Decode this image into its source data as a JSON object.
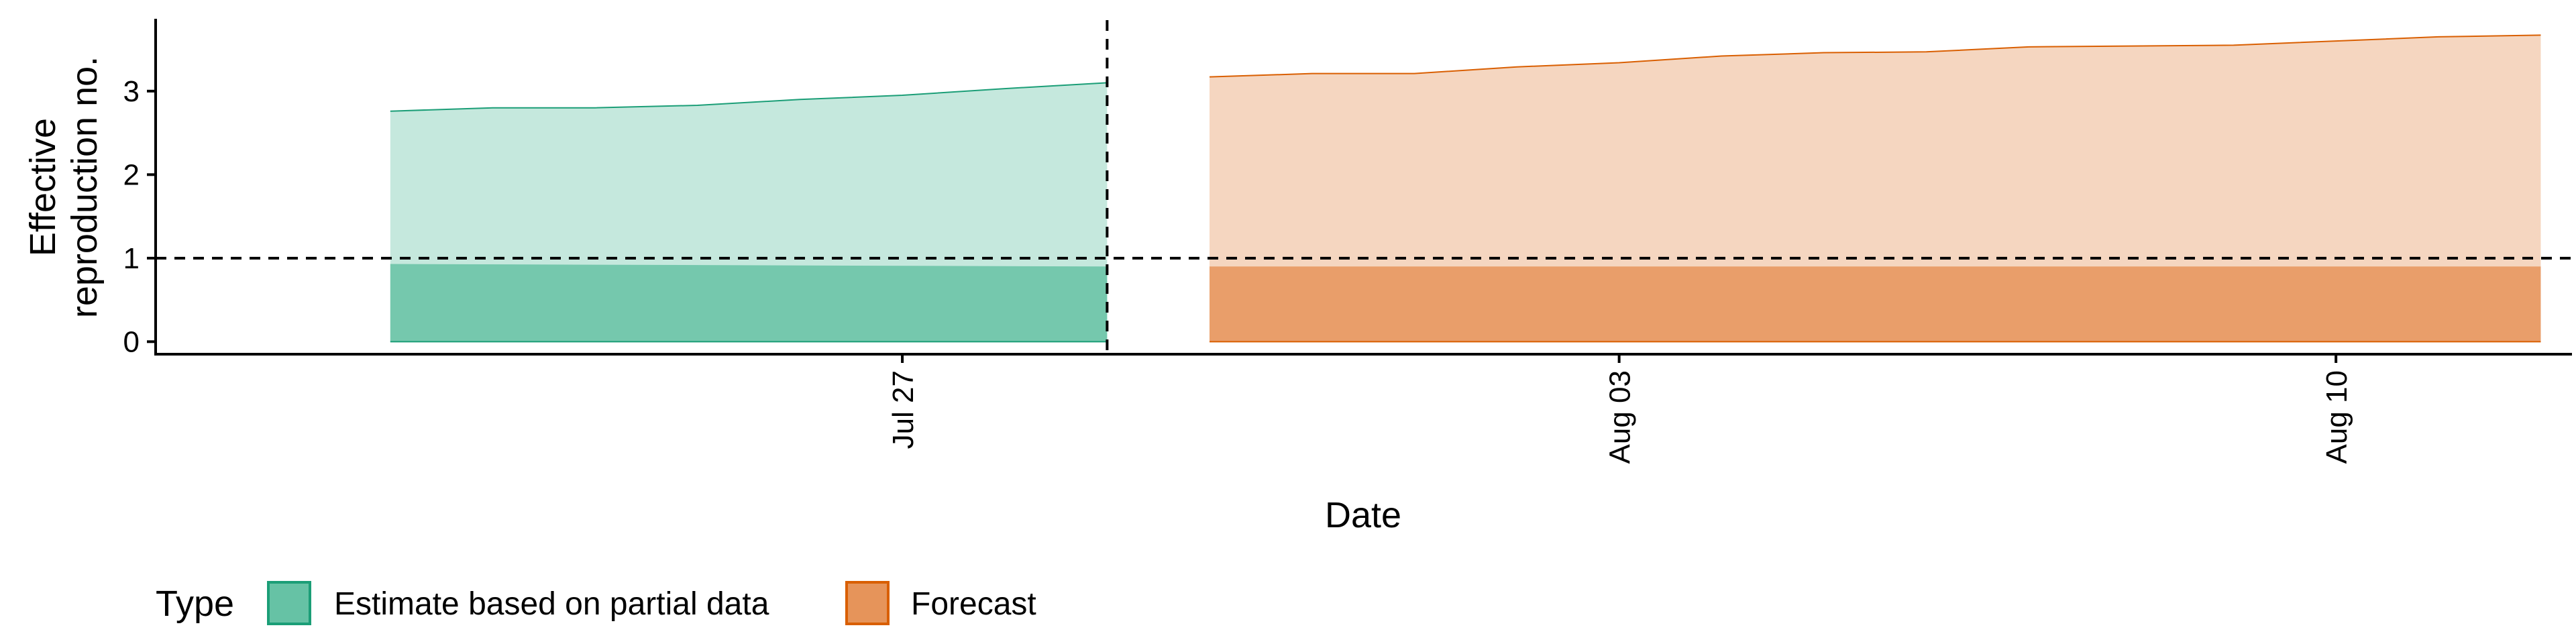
{
  "chart_data": {
    "type": "area",
    "xlabel": "Date",
    "ylabel_lines": [
      "Effective",
      "reproduction no."
    ],
    "x_ticks": [
      {
        "date": "2020-07-27",
        "label": "Jul 27"
      },
      {
        "date": "2020-08-03",
        "label": "Aug 03"
      },
      {
        "date": "2020-08-10",
        "label": "Aug 10"
      }
    ],
    "x_range": [
      "2020-07-19T17:00",
      "2020-08-12T07:00"
    ],
    "y_ticks": [
      0,
      1,
      2,
      3
    ],
    "ylim": [
      -0.15,
      3.85
    ],
    "reference_lines": {
      "y": 1,
      "x": "2020-07-29"
    },
    "series": [
      {
        "name": "Estimate based on partial data",
        "fill": "#66C2A5",
        "stroke": "#1B9E77",
        "outer": {
          "x": [
            "2020-07-22",
            "2020-07-23",
            "2020-07-24",
            "2020-07-25",
            "2020-07-26",
            "2020-07-27",
            "2020-07-28",
            "2020-07-29"
          ],
          "lower": [
            0,
            0,
            0,
            0,
            0,
            0,
            0,
            0
          ],
          "upper": [
            2.76,
            2.8,
            2.8,
            2.83,
            2.9,
            2.95,
            3.03,
            3.1
          ]
        },
        "inner": {
          "x": [
            "2020-07-22",
            "2020-07-29"
          ],
          "lower": [
            0,
            0
          ],
          "upper": [
            0.93,
            0.9
          ]
        }
      },
      {
        "name": "Forecast",
        "fill": "#E6945A",
        "stroke": "#D95F02",
        "outer": {
          "x": [
            "2020-07-30",
            "2020-07-31",
            "2020-08-01",
            "2020-08-02",
            "2020-08-03",
            "2020-08-04",
            "2020-08-05",
            "2020-08-06",
            "2020-08-07",
            "2020-08-08",
            "2020-08-09",
            "2020-08-10",
            "2020-08-11",
            "2020-08-12"
          ],
          "lower": [
            0,
            0,
            0,
            0,
            0,
            0,
            0,
            0,
            0,
            0,
            0,
            0,
            0,
            0
          ],
          "upper": [
            3.17,
            3.21,
            3.21,
            3.29,
            3.34,
            3.42,
            3.46,
            3.47,
            3.53,
            3.54,
            3.55,
            3.6,
            3.65,
            3.67
          ]
        },
        "inner": {
          "x": [
            "2020-07-30",
            "2020-08-12"
          ],
          "lower": [
            0,
            0
          ],
          "upper": [
            0.9,
            0.9
          ]
        }
      }
    ],
    "legend": {
      "title": "Type",
      "position": "bottom"
    },
    "grid": false
  }
}
